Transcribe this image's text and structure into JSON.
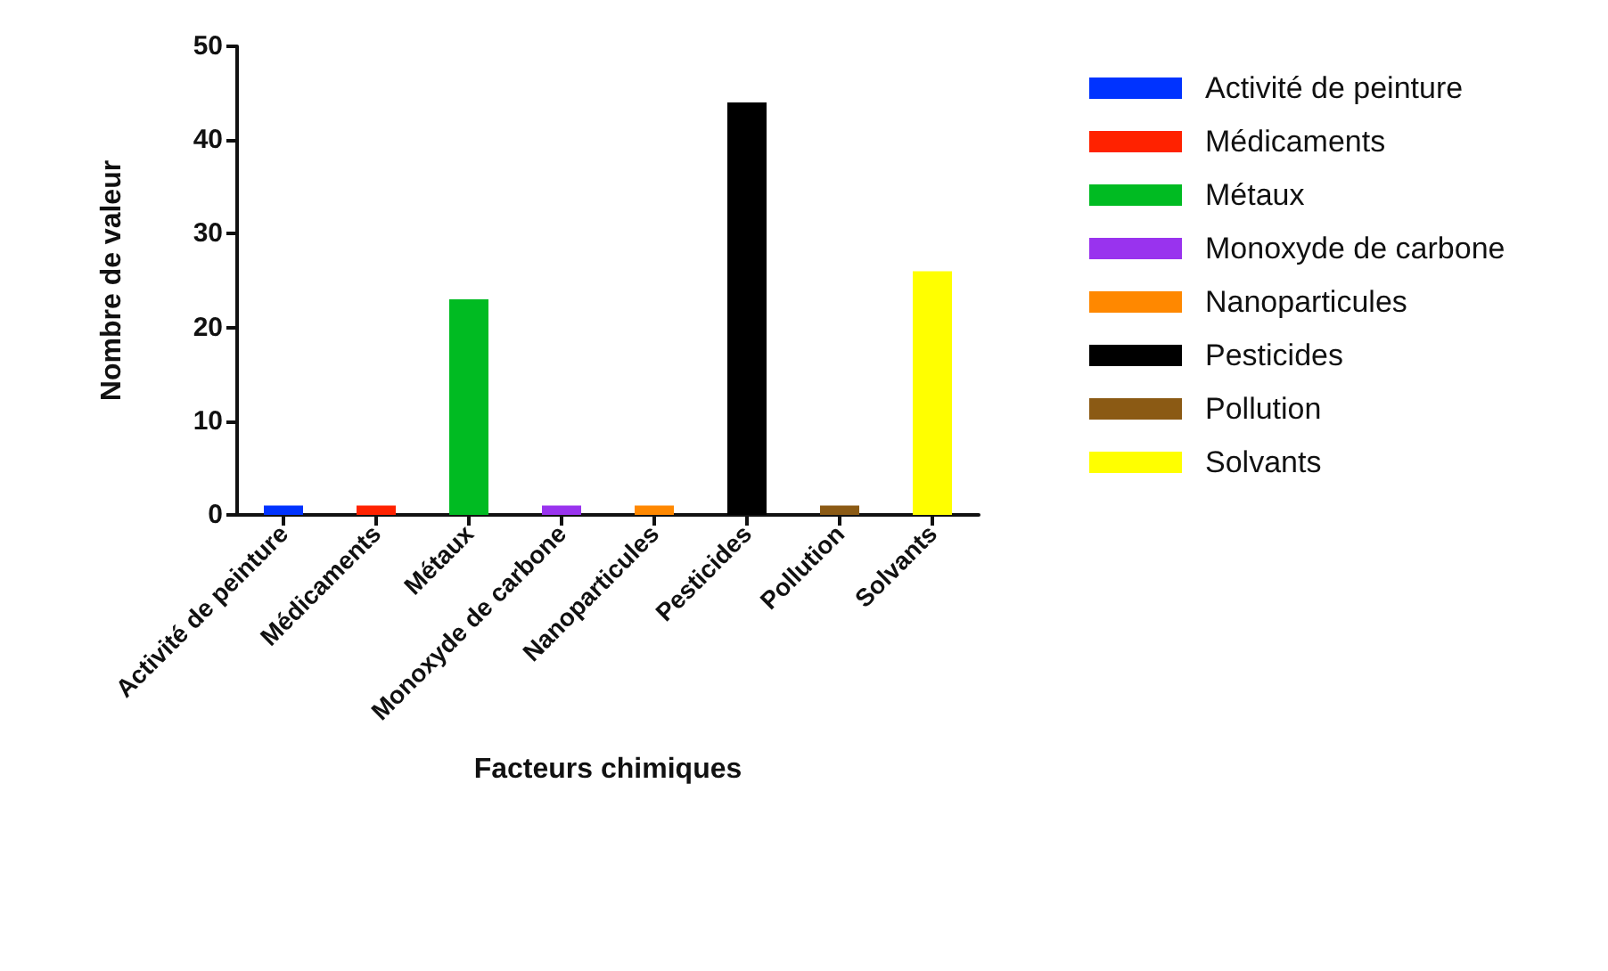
{
  "chart_data": {
    "type": "bar",
    "xlabel": "Facteurs chimiques",
    "ylabel": "Nombre de valeur",
    "categories": [
      "Activité de peinture",
      "Médicaments",
      "Métaux",
      "Monoxyde de carbone",
      "Nanoparticules",
      "Pesticides",
      "Pollution",
      "Solvants"
    ],
    "series": [
      {
        "name": "Activité de peinture",
        "color": "#0033ff",
        "values": [
          1,
          null,
          null,
          null,
          null,
          null,
          null,
          null
        ]
      },
      {
        "name": "Médicaments",
        "color": "#ff2200",
        "values": [
          null,
          1,
          null,
          null,
          null,
          null,
          null,
          null
        ]
      },
      {
        "name": "Métaux",
        "color": "#00bb22",
        "values": [
          null,
          null,
          23,
          null,
          null,
          null,
          null,
          null
        ]
      },
      {
        "name": "Monoxyde de carbone",
        "color": "#9933ee",
        "values": [
          null,
          null,
          null,
          1,
          null,
          null,
          null,
          null
        ]
      },
      {
        "name": "Nanoparticules",
        "color": "#ff8800",
        "values": [
          null,
          null,
          null,
          null,
          1,
          null,
          null,
          null
        ]
      },
      {
        "name": "Pesticides",
        "color": "#000000",
        "values": [
          null,
          null,
          null,
          null,
          null,
          44,
          null,
          null
        ]
      },
      {
        "name": "Pollution",
        "color": "#8b5a14",
        "values": [
          null,
          null,
          null,
          null,
          null,
          null,
          1,
          null
        ]
      },
      {
        "name": "Solvants",
        "color": "#ffff00",
        "values": [
          null,
          null,
          null,
          null,
          null,
          null,
          null,
          26
        ]
      }
    ],
    "ylim": [
      0,
      50
    ],
    "yticks": [
      0,
      10,
      20,
      30,
      40,
      50
    ],
    "grid": false,
    "legend": "right"
  }
}
